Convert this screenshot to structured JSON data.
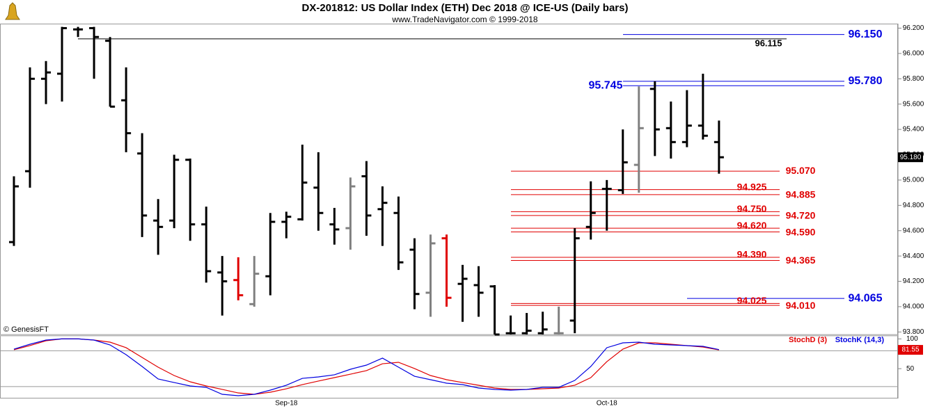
{
  "chart_data": [
    {
      "type": "ohlc",
      "title": "DX-201812:  US Dollar Index (ETH) Dec 2018 @ ICE-US  (Daily bars)",
      "subtitle": "www.TradeNavigator.com © 1999-2018",
      "watermark": "© GenesisFT",
      "categories": [
        null,
        null,
        null,
        null,
        null,
        null,
        null,
        null,
        null,
        null,
        null,
        null,
        null,
        null,
        null,
        null,
        null,
        "Sep-18",
        null,
        null,
        null,
        null,
        null,
        null,
        null,
        null,
        null,
        null,
        null,
        null,
        null,
        null,
        null,
        null,
        null,
        null,
        null,
        "Oct-18",
        null,
        null,
        null,
        null,
        null,
        null,
        null
      ],
      "open": [
        94.51,
        95.07,
        95.8,
        95.84,
        96.19,
        96.2,
        96.1,
        95.63,
        95.21,
        94.68,
        94.68,
        95.16,
        94.65,
        94.27,
        94.21,
        94.02,
        94.24,
        94.67,
        94.69,
        94.94,
        94.65,
        94.62,
        95.03,
        94.77,
        94.74,
        94.45,
        94.11,
        94.54,
        94.18,
        94.17,
        94.16,
        93.79,
        93.79,
        93.79,
        93.79,
        93.89,
        94.63,
        94.93,
        94.92,
        95.12,
        95.72,
        95.41,
        95.3,
        95.43,
        95.3
      ],
      "high": [
        95.03,
        95.89,
        95.94,
        96.21,
        96.21,
        96.21,
        96.13,
        95.89,
        95.37,
        94.85,
        95.2,
        95.17,
        94.79,
        94.4,
        94.39,
        94.4,
        94.74,
        94.75,
        95.28,
        95.22,
        94.78,
        95.02,
        95.15,
        94.95,
        94.87,
        94.54,
        94.57,
        94.57,
        94.33,
        94.32,
        94.17,
        93.93,
        93.95,
        93.96,
        94.0,
        94.62,
        94.99,
        95.0,
        95.4,
        95.74,
        95.78,
        95.62,
        95.71,
        95.84,
        95.47
      ],
      "low": [
        94.48,
        94.94,
        95.6,
        95.62,
        96.13,
        95.8,
        95.58,
        95.22,
        94.55,
        94.41,
        94.62,
        94.52,
        94.19,
        93.93,
        94.05,
        94.0,
        94.09,
        94.54,
        94.68,
        94.6,
        94.49,
        94.45,
        94.56,
        94.48,
        94.29,
        93.98,
        93.92,
        94.0,
        93.88,
        93.92,
        93.78,
        93.78,
        93.78,
        93.78,
        93.78,
        93.79,
        94.53,
        94.6,
        94.89,
        94.9,
        95.19,
        95.17,
        95.26,
        95.32,
        95.05
      ],
      "close": [
        94.95,
        95.8,
        95.85,
        96.2,
        96.19,
        96.13,
        95.58,
        95.37,
        94.72,
        94.63,
        95.16,
        94.65,
        94.28,
        94.2,
        94.09,
        94.26,
        94.67,
        94.71,
        94.98,
        94.74,
        94.61,
        94.95,
        94.72,
        94.82,
        94.35,
        94.1,
        94.5,
        94.07,
        94.22,
        94.11,
        93.78,
        93.79,
        93.81,
        93.82,
        93.79,
        94.54,
        94.74,
        94.93,
        95.14,
        95.41,
        95.4,
        95.3,
        95.43,
        95.35,
        95.18
      ],
      "colors": [
        "#000",
        "#000",
        "#000",
        "#000",
        "#000",
        "#000",
        "#000",
        "#000",
        "#000",
        "#000",
        "#000",
        "#000",
        "#000",
        "#000",
        "#e00000",
        "#808080",
        "#000",
        "#000",
        "#000",
        "#000",
        "#000",
        "#808080",
        "#000",
        "#000",
        "#000",
        "#000",
        "#808080",
        "#e00000",
        "#000",
        "#000",
        "#000",
        "#000",
        "#000",
        "#000",
        "#808080",
        "#000",
        "#000",
        "#000",
        "#000",
        "#808080",
        "#000",
        "#000",
        "#000",
        "#000",
        "#000"
      ],
      "ylim": [
        93.78,
        96.23
      ],
      "yticks": [
        {
          "value": 93.8,
          "label": "93.800"
        },
        {
          "value": 94.0,
          "label": "94.000"
        },
        {
          "value": 94.2,
          "label": "94.200"
        },
        {
          "value": 94.4,
          "label": "94.400"
        },
        {
          "value": 94.6,
          "label": "94.600"
        },
        {
          "value": 94.8,
          "label": "94.800"
        },
        {
          "value": 95.0,
          "label": "95.000"
        },
        {
          "value": 95.2,
          "label": "95.200"
        },
        {
          "value": 95.4,
          "label": "95.400"
        },
        {
          "value": 95.6,
          "label": "95.600"
        },
        {
          "value": 95.8,
          "label": "95.800"
        },
        {
          "value": 96.0,
          "label": "96.000"
        },
        {
          "value": 96.2,
          "label": "96.200"
        }
      ],
      "last": {
        "value": 95.18,
        "label": "95.180"
      },
      "levels": [
        {
          "value": 96.15,
          "label": "96.150",
          "color": "#0000e0"
        },
        {
          "value": 96.115,
          "label": "96.115",
          "color": "#000000"
        },
        {
          "value": 95.78,
          "label": "95.780",
          "color": "#0000e0"
        },
        {
          "value": 95.745,
          "label": "95.745",
          "color": "#0000e0"
        },
        {
          "value": 95.07,
          "label": "95.070",
          "color": "#e00000"
        },
        {
          "value": 94.925,
          "label": "94.925",
          "color": "#e00000"
        },
        {
          "value": 94.885,
          "label": "94.885",
          "color": "#e00000"
        },
        {
          "value": 94.75,
          "label": "94.750",
          "color": "#e00000"
        },
        {
          "value": 94.72,
          "label": "94.720",
          "color": "#e00000"
        },
        {
          "value": 94.62,
          "label": "94.620",
          "color": "#e00000"
        },
        {
          "value": 94.59,
          "label": "94.590",
          "color": "#e00000"
        },
        {
          "value": 94.39,
          "label": "94.390",
          "color": "#e00000"
        },
        {
          "value": 94.365,
          "label": "94.365",
          "color": "#e00000"
        },
        {
          "value": 94.065,
          "label": "94.065",
          "color": "#0000e0"
        },
        {
          "value": 94.025,
          "label": "94.025",
          "color": "#e00000"
        },
        {
          "value": 94.01,
          "label": "94.010",
          "color": "#e00000"
        }
      ]
    },
    {
      "type": "line",
      "series": [
        {
          "name": "StochD (3)",
          "color": "#e00000",
          "values": [
            81.7,
            88.7,
            96.8,
            100,
            100,
            98,
            94.5,
            85.2,
            68.8,
            52.5,
            38.5,
            28,
            21,
            15.2,
            9.3,
            7,
            10.5,
            16.3,
            23.3,
            29.2,
            35,
            40.8,
            46.7,
            58.3,
            60.7,
            50.2,
            38.5,
            31.5,
            26.8,
            22.2,
            17.5,
            15.2,
            15.2,
            16.3,
            17.5,
            22.2,
            35,
            61.8,
            82.8,
            93.3,
            93.3,
            91,
            88.7,
            86.3,
            81.55
          ]
        },
        {
          "name": "StochK (14,3)",
          "color": "#0000e0",
          "values": [
            82.8,
            91,
            98,
            100,
            100,
            98,
            89.8,
            73.5,
            53.7,
            32.7,
            26.8,
            21,
            18.7,
            7,
            4.7,
            7,
            14,
            22.2,
            33.8,
            36.2,
            39.7,
            49,
            56,
            67.7,
            52.5,
            37.3,
            31.5,
            25.7,
            23.3,
            17.5,
            15.2,
            14,
            15.2,
            18.7,
            18.7,
            30.3,
            53.7,
            85.2,
            93.3,
            94.5,
            91,
            89.8,
            88.7,
            87.5,
            82
          ]
        }
      ],
      "last": {
        "value": 81.55,
        "label": "81.55"
      },
      "levels": [
        20,
        80
      ],
      "ylim": [
        0,
        105
      ],
      "yticks": [
        50,
        100
      ]
    }
  ]
}
